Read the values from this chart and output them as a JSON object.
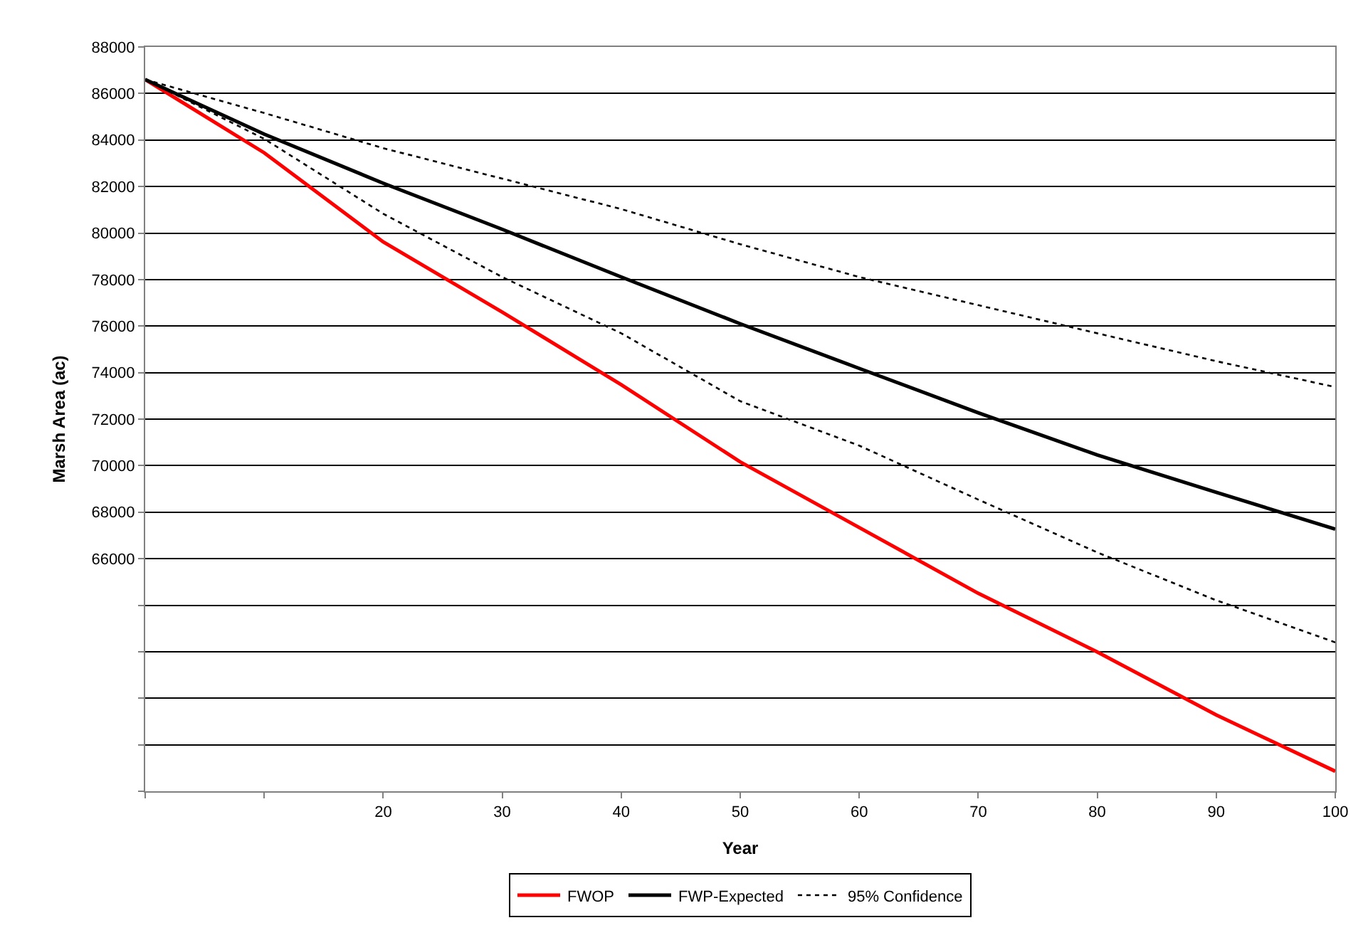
{
  "chart_data": {
    "type": "line",
    "xlabel": "Year",
    "ylabel": "Marsh Area (ac)",
    "x": [
      0,
      10,
      20,
      30,
      40,
      50,
      60,
      70,
      80,
      90,
      100
    ],
    "series": [
      {
        "name": "FWOP",
        "color": "#ff0000",
        "line_style": "solid",
        "values": [
          86600,
          83450,
          79620,
          76600,
          73480,
          70160,
          67340,
          64510,
          61990,
          59280,
          56860
        ]
      },
      {
        "name": "FWP-Expected",
        "color": "#000000",
        "line_style": "solid",
        "values": [
          86600,
          84250,
          82140,
          80160,
          78110,
          76100,
          74180,
          72270,
          70460,
          68850,
          67270
        ]
      },
      {
        "name": "95% Confidence",
        "color": "#000000",
        "line_style": "dotted",
        "values": [
          86600,
          85160,
          83650,
          82340,
          81030,
          79520,
          78110,
          76900,
          75690,
          74490,
          73380
        ]
      },
      {
        "color": "#000000",
        "line_style": "dotted",
        "values": [
          86600,
          84050,
          80830,
          78110,
          75690,
          72770,
          70860,
          68540,
          66270,
          64210,
          62400
        ]
      }
    ],
    "xlim": [
      0,
      100
    ],
    "ylim": [
      56000,
      88000
    ],
    "xticks": [
      {
        "value": 0,
        "label": null
      },
      {
        "value": 10,
        "label": null
      },
      20,
      30,
      40,
      50,
      60,
      70,
      80,
      90,
      100
    ],
    "yticks": [
      {
        "value": 56000,
        "label": null
      },
      {
        "value": 58000,
        "label": null
      },
      {
        "value": 60000,
        "label": null
      },
      {
        "value": 62000,
        "label": null
      },
      {
        "value": 64000,
        "label": null
      },
      66000,
      68000,
      70000,
      72000,
      74000,
      76000,
      78000,
      80000,
      82000,
      84000,
      86000,
      88000
    ],
    "grid": "y",
    "legend": "bottom",
    "marker": "none"
  }
}
